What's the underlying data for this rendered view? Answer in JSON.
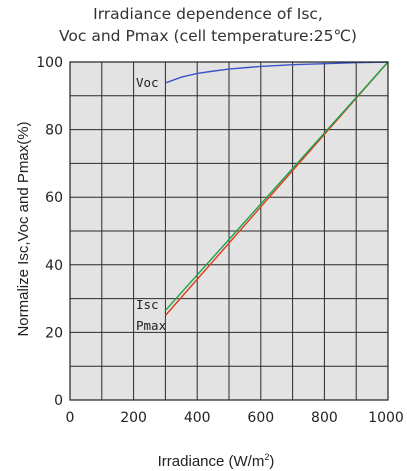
{
  "chart_data": {
    "type": "line",
    "title_lines": [
      "Irradiance dependence of Isc,",
      "Voc and Pmax (cell temperature:25℃)"
    ],
    "xlabel_main": "Irradiance (W/m",
    "xlabel_sup": "2",
    "xlabel_close": ")",
    "ylabel": "Normalize Isc,Voc and Pmax(%)",
    "xlim": [
      0,
      1000
    ],
    "ylim": [
      0,
      100
    ],
    "x_ticks": [
      "0",
      "200",
      "400",
      "600",
      "800",
      "1000"
    ],
    "y_ticks": [
      "0",
      "20",
      "40",
      "60",
      "80",
      "100"
    ],
    "grid": true,
    "plot_background": "#e3e3e3",
    "series": [
      {
        "name": "Voc",
        "color": "#3a55c8",
        "x": [
          300,
          350,
          400,
          450,
          500,
          600,
          700,
          800,
          900,
          1000
        ],
        "y": [
          93.8,
          95.5,
          96.6,
          97.3,
          97.9,
          98.7,
          99.2,
          99.5,
          99.8,
          100
        ]
      },
      {
        "name": "Isc",
        "color": "#1aa34a",
        "x": [
          300,
          1000
        ],
        "y": [
          26.5,
          100
        ]
      },
      {
        "name": "Pmax",
        "color": "#e23b1c",
        "x": [
          300,
          1000
        ],
        "y": [
          25,
          100
        ]
      }
    ]
  }
}
